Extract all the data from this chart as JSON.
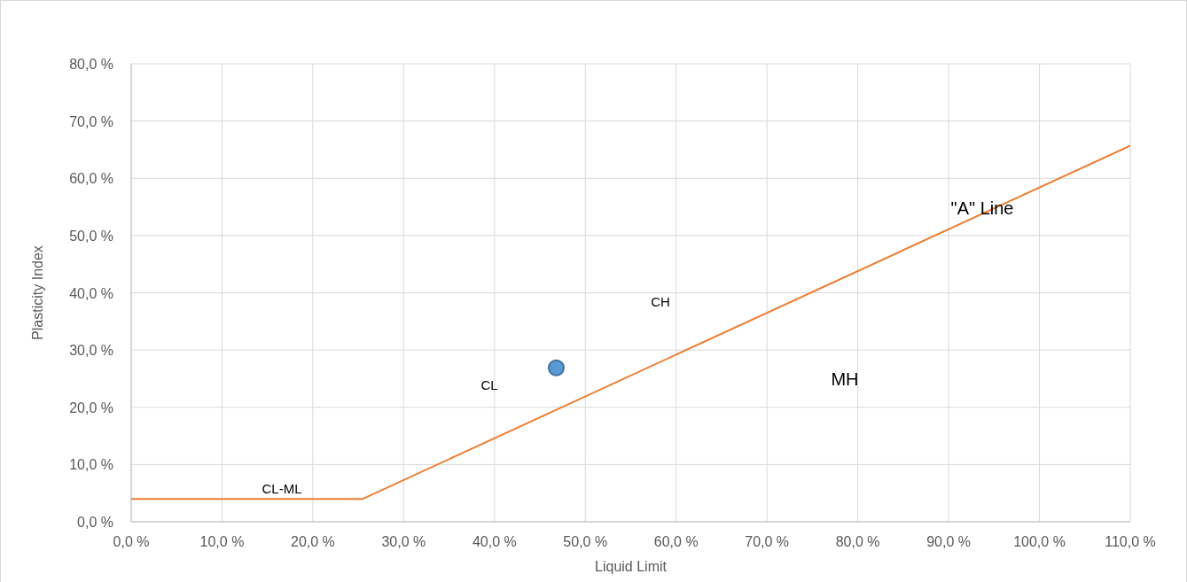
{
  "chart_data": {
    "type": "scatter",
    "xlabel": "Liquid Limit",
    "ylabel": "Plasticity Index",
    "xlim": [
      0,
      110
    ],
    "ylim": [
      0,
      80
    ],
    "xticks": [
      {
        "value": 0,
        "label": "0,0 %"
      },
      {
        "value": 10,
        "label": "10,0 %"
      },
      {
        "value": 20,
        "label": "20,0 %"
      },
      {
        "value": 30,
        "label": "30,0 %"
      },
      {
        "value": 40,
        "label": "40,0 %"
      },
      {
        "value": 50,
        "label": "50,0 %"
      },
      {
        "value": 60,
        "label": "60,0 %"
      },
      {
        "value": 70,
        "label": "70,0 %"
      },
      {
        "value": 80,
        "label": "80,0 %"
      },
      {
        "value": 90,
        "label": "90,0 %"
      },
      {
        "value": 100,
        "label": "100,0 %"
      },
      {
        "value": 110,
        "label": "110,0 %"
      }
    ],
    "yticks": [
      {
        "value": 0,
        "label": "0,0 %"
      },
      {
        "value": 10,
        "label": "10,0 %"
      },
      {
        "value": 20,
        "label": "20,0 %"
      },
      {
        "value": 30,
        "label": "30,0 %"
      },
      {
        "value": 40,
        "label": "40,0 %"
      },
      {
        "value": 50,
        "label": "50,0 %"
      },
      {
        "value": 60,
        "label": "60,0 %"
      },
      {
        "value": 70,
        "label": "70,0 %"
      },
      {
        "value": 80,
        "label": "80,0 %"
      }
    ],
    "grid": true,
    "series": [
      {
        "type": "line",
        "color": "#ed7d31",
        "x": [
          0,
          25.5,
          110
        ],
        "values": [
          4,
          4,
          65.7
        ],
        "marker": "none",
        "line_style": "solid"
      },
      {
        "type": "scatter",
        "color": "#5b9bd5",
        "x": [
          46.8
        ],
        "values": [
          26.9
        ],
        "marker": "circle"
      }
    ],
    "annotations": [
      "CL-ML",
      "CL",
      "CH",
      "MH",
      "\"A\" Line"
    ]
  }
}
